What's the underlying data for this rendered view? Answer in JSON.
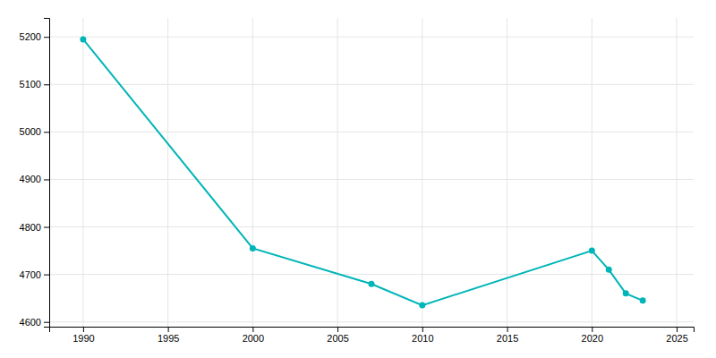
{
  "chart_data": {
    "type": "line",
    "x": [
      1990,
      2000,
      2007,
      2010,
      2020,
      2021,
      2022,
      2023
    ],
    "values": [
      5195,
      4755,
      4680,
      4635,
      4750,
      4710,
      4660,
      4645
    ],
    "color": "#00b5b8",
    "marker": "circle",
    "line_style": "solid",
    "xlim": [
      1988,
      2026
    ],
    "xticks": [
      1990,
      1995,
      2000,
      2005,
      2010,
      2015,
      2020,
      2025
    ],
    "ylim": [
      4590,
      5240
    ],
    "yticks": [
      4600,
      4700,
      4800,
      4900,
      5000,
      5100,
      5200
    ],
    "grid": true
  }
}
